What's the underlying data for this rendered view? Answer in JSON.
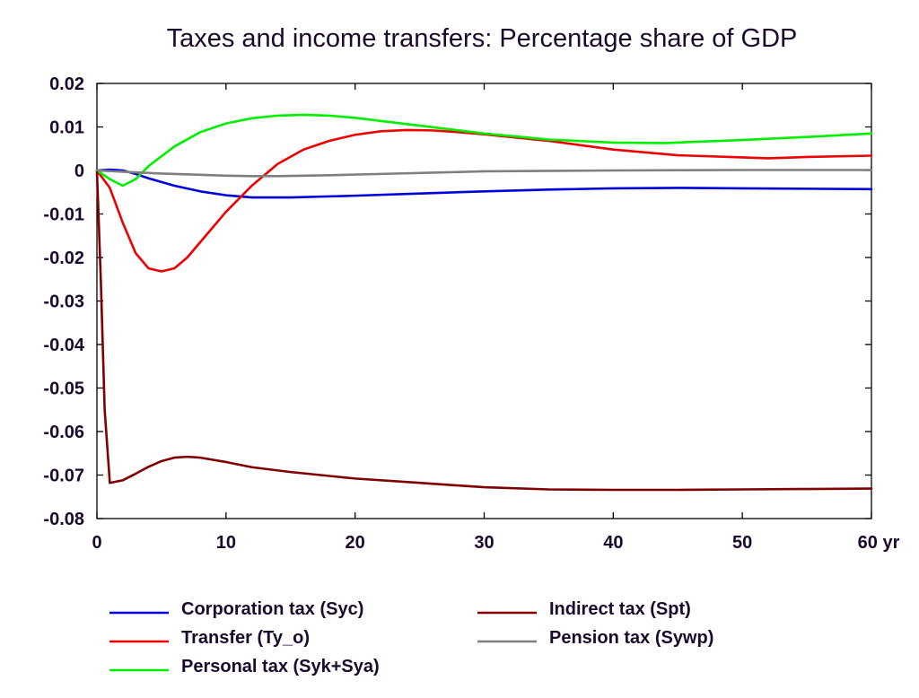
{
  "chart_data": {
    "type": "line",
    "title": "Taxes and income transfers: Percentage share of GDP",
    "xlabel": "",
    "ylabel": "",
    "x_unit_label": "yr",
    "xlim": [
      0,
      60
    ],
    "ylim": [
      -0.08,
      0.02
    ],
    "x_ticks": [
      0,
      10,
      20,
      30,
      40,
      50,
      60
    ],
    "x_tick_labels": [
      "0",
      "10",
      "20",
      "30",
      "40",
      "50",
      "60 yr"
    ],
    "y_ticks": [
      0.02,
      0.01,
      0,
      -0.01,
      -0.02,
      -0.03,
      -0.04,
      -0.05,
      -0.06,
      -0.07,
      -0.08
    ],
    "y_tick_labels": [
      "0.02",
      "0.01",
      "0",
      "-0.01",
      "-0.02",
      "-0.03",
      "-0.04",
      "-0.05",
      "-0.06",
      "-0.07",
      "-0.08"
    ],
    "grid": false,
    "legend_position": "bottom",
    "series": [
      {
        "name": "Corporation tax (Syc)",
        "color": "#0000dd",
        "x": [
          0,
          1,
          2,
          3,
          4,
          6,
          8,
          10,
          12,
          15,
          20,
          25,
          30,
          35,
          40,
          45,
          50,
          55,
          60
        ],
        "y": [
          0,
          0.0002,
          0,
          -0.0008,
          -0.0018,
          -0.0035,
          -0.0048,
          -0.0057,
          -0.0062,
          -0.0062,
          -0.0058,
          -0.0053,
          -0.0048,
          -0.0044,
          -0.0041,
          -0.004,
          -0.0041,
          -0.0042,
          -0.0043
        ]
      },
      {
        "name": "Transfer (Ty_o)",
        "color": "#ee0000",
        "x": [
          0,
          1,
          2,
          3,
          4,
          5,
          6,
          7,
          8,
          10,
          12,
          14,
          16,
          18,
          20,
          22,
          24,
          26,
          28,
          30,
          35,
          40,
          45,
          50,
          52,
          55,
          60
        ],
        "y": [
          0,
          -0.004,
          -0.012,
          -0.019,
          -0.0225,
          -0.0232,
          -0.0225,
          -0.02,
          -0.0165,
          -0.0095,
          -0.0035,
          0.0015,
          0.0048,
          0.0068,
          0.0082,
          0.009,
          0.0093,
          0.0092,
          0.0088,
          0.0083,
          0.0068,
          0.0048,
          0.0035,
          0.003,
          0.0028,
          0.0031,
          0.0034
        ]
      },
      {
        "name": "Personal tax (Syk+Sya)",
        "color": "#00ee00",
        "x": [
          0,
          1,
          2,
          3,
          4,
          6,
          8,
          10,
          12,
          14,
          16,
          18,
          20,
          25,
          30,
          35,
          40,
          44,
          50,
          55,
          60
        ],
        "y": [
          0,
          -0.002,
          -0.0035,
          -0.002,
          0.001,
          0.0055,
          0.0088,
          0.0108,
          0.012,
          0.0126,
          0.0128,
          0.0126,
          0.0121,
          0.0103,
          0.0085,
          0.0071,
          0.0064,
          0.0063,
          0.007,
          0.0077,
          0.0085
        ]
      },
      {
        "name": "Indirect tax (Spt)",
        "color": "#800000",
        "x": [
          0,
          0.3,
          0.6,
          1,
          2,
          3,
          4,
          5,
          6,
          7,
          8,
          10,
          12,
          15,
          20,
          25,
          30,
          35,
          40,
          45,
          50,
          55,
          60
        ],
        "y": [
          0,
          -0.025,
          -0.055,
          -0.0718,
          -0.0712,
          -0.0697,
          -0.0681,
          -0.0668,
          -0.066,
          -0.0658,
          -0.066,
          -0.067,
          -0.0682,
          -0.0693,
          -0.0708,
          -0.0718,
          -0.0728,
          -0.0733,
          -0.0734,
          -0.0734,
          -0.0733,
          -0.0732,
          -0.0731
        ]
      },
      {
        "name": "Pension tax (Sywp)",
        "color": "#808080",
        "x": [
          0,
          2,
          5,
          8,
          10,
          12,
          14,
          18,
          22,
          26,
          30,
          40,
          50,
          60
        ],
        "y": [
          0,
          -0.0003,
          -0.0007,
          -0.001,
          -0.0012,
          -0.0013,
          -0.0013,
          -0.0011,
          -0.0008,
          -0.0005,
          -0.0002,
          0,
          0.0001,
          0.0001
        ]
      }
    ]
  }
}
